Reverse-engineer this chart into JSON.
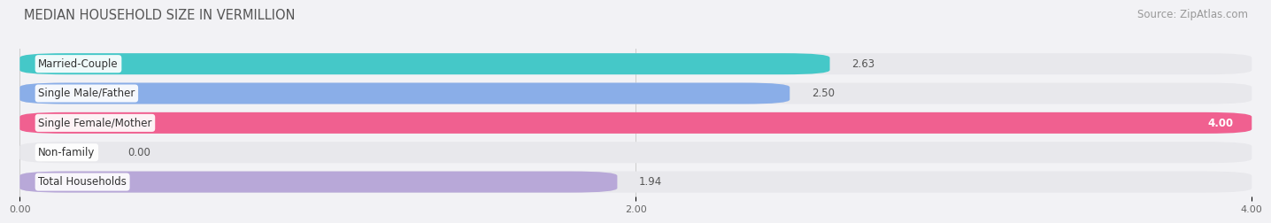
{
  "title": "MEDIAN HOUSEHOLD SIZE IN VERMILLION",
  "source": "Source: ZipAtlas.com",
  "categories": [
    "Married-Couple",
    "Single Male/Father",
    "Single Female/Mother",
    "Non-family",
    "Total Households"
  ],
  "values": [
    2.63,
    2.5,
    4.0,
    0.0,
    1.94
  ],
  "bar_colors": [
    "#45c8c8",
    "#8aaee8",
    "#f06090",
    "#f5c8a0",
    "#b8a8d8"
  ],
  "bg_bar_color": "#e8e8ec",
  "xlim": [
    0,
    4.0
  ],
  "xticks": [
    0.0,
    2.0,
    4.0
  ],
  "xtick_labels": [
    "0.00",
    "2.00",
    "4.00"
  ],
  "background_color": "#f2f2f5",
  "title_fontsize": 10.5,
  "source_fontsize": 8.5,
  "label_fontsize": 8.5,
  "value_fontsize": 8.5
}
